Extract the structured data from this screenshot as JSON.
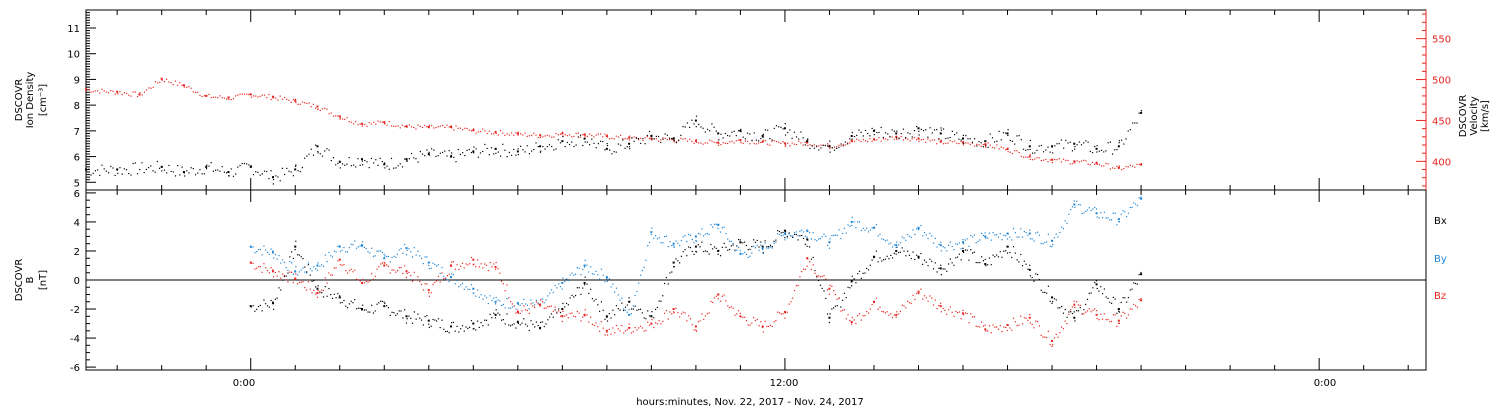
{
  "footer_label": "hours:minutes, Nov. 22, 2017 - Nov. 24, 2017",
  "x_tick_labels": [
    "0:00",
    "12:00",
    "0:00"
  ],
  "colors": {
    "black": "#000000",
    "red": "#e8251f",
    "blue": "#1f86d6"
  },
  "chart_data": [
    {
      "type": "scatter",
      "title": "",
      "xlabel": "hours:minutes, Nov. 22, 2017 - Nov. 24, 2017",
      "x_units": "hours since Nov. 22, 2017 0:00",
      "xlim": [
        -3.7,
        26.4
      ],
      "ylabel_left": [
        "DSCOVR",
        "Ion Density",
        "[cm⁻³]"
      ],
      "ylabel_right": [
        "DSCOVR",
        "Velocity",
        "[km/s]"
      ],
      "ylim_left": [
        4.7,
        11.7
      ],
      "ylim_right": [
        365,
        585
      ],
      "left_ticks": [
        "5",
        "6",
        "7",
        "8",
        "9",
        "10",
        "11"
      ],
      "right_ticks": [
        "400",
        "450",
        "500",
        "550"
      ],
      "grid": false,
      "series": [
        {
          "name": "Ion Density",
          "axis": "left",
          "color": "#000000",
          "x": [
            -3.7,
            -3.0,
            -2.0,
            -1.5,
            -1.0,
            -0.5,
            0.0,
            0.5,
            1.0,
            1.5,
            2.0,
            2.5,
            3.0,
            3.5,
            4.0,
            4.5,
            5.0,
            5.5,
            6.0,
            6.5,
            7.0,
            7.5,
            8.0,
            8.5,
            9.0,
            9.5,
            10.0,
            10.5,
            11.0,
            11.5,
            12.0,
            12.5,
            13.0,
            13.5,
            14.0,
            14.5,
            15.0,
            15.5,
            16.0,
            16.5,
            17.0,
            17.5,
            18.0,
            18.5,
            19.0,
            19.5,
            20.0
          ],
          "y": [
            5.5,
            5.5,
            5.6,
            5.4,
            5.6,
            5.4,
            5.6,
            5.2,
            5.5,
            6.4,
            5.8,
            5.9,
            5.7,
            5.9,
            6.1,
            6.0,
            6.2,
            6.3,
            6.2,
            6.4,
            6.6,
            6.7,
            6.3,
            6.5,
            6.8,
            6.7,
            7.4,
            6.9,
            7.0,
            6.8,
            7.1,
            6.6,
            6.4,
            6.8,
            7.0,
            6.9,
            7.1,
            6.9,
            6.7,
            6.6,
            6.9,
            6.4,
            6.4,
            6.5,
            6.3,
            6.4,
            7.7
          ]
        },
        {
          "name": "Velocity",
          "axis": "right",
          "color": "#e8251f",
          "x": [
            -3.7,
            -3.0,
            -2.5,
            -2.0,
            -1.5,
            -1.0,
            -0.5,
            0.0,
            0.5,
            1.0,
            1.5,
            2.0,
            2.5,
            3.0,
            3.5,
            4.0,
            4.5,
            5.0,
            5.5,
            6.0,
            6.5,
            7.0,
            7.5,
            8.0,
            8.5,
            9.0,
            9.5,
            10.0,
            10.5,
            11.0,
            11.5,
            12.0,
            12.5,
            13.0,
            13.5,
            14.0,
            14.5,
            15.0,
            15.5,
            16.0,
            16.5,
            17.0,
            17.5,
            18.0,
            18.5,
            19.0,
            19.5,
            20.0
          ],
          "y": [
            488,
            485,
            482,
            501,
            493,
            480,
            478,
            482,
            479,
            474,
            467,
            455,
            446,
            448,
            443,
            442,
            442,
            438,
            436,
            434,
            432,
            434,
            433,
            431,
            429,
            428,
            427,
            425,
            423,
            426,
            424,
            422,
            423,
            419,
            425,
            427,
            430,
            428,
            424,
            423,
            421,
            415,
            406,
            402,
            400,
            398,
            392,
            396
          ]
        }
      ]
    },
    {
      "type": "scatter",
      "title": "",
      "xlabel": "hours:minutes, Nov. 22, 2017 - Nov. 24, 2017",
      "x_units": "hours since Nov. 22, 2017 0:00",
      "xlim": [
        -3.7,
        26.4
      ],
      "ylabel_left": [
        "DSCOVR",
        "B",
        "[nT]"
      ],
      "ylim": [
        -6.2,
        6.2
      ],
      "left_ticks": [
        "-6",
        "-4",
        "-2",
        "0",
        "2",
        "4",
        "6"
      ],
      "zero_line": true,
      "grid": false,
      "legend": "right",
      "series": [
        {
          "name": "Bx",
          "color": "#000000",
          "x": [
            0.0,
            0.5,
            1.0,
            1.5,
            2.0,
            2.5,
            3.0,
            3.5,
            4.0,
            4.5,
            5.0,
            5.5,
            6.0,
            6.5,
            7.0,
            7.5,
            8.0,
            8.5,
            9.0,
            9.5,
            10.0,
            10.5,
            11.0,
            11.5,
            12.0,
            12.5,
            13.0,
            13.5,
            14.0,
            14.5,
            15.0,
            15.5,
            16.0,
            16.5,
            17.0,
            17.5,
            18.0,
            18.5,
            19.0,
            19.5,
            20.0
          ],
          "y": [
            -1.8,
            -1.6,
            2.3,
            -0.6,
            -1.2,
            -2.0,
            -1.8,
            -2.5,
            -2.8,
            -3.2,
            -3.0,
            -2.4,
            -2.9,
            -3.3,
            -2.0,
            -0.2,
            -2.5,
            -1.5,
            -2.5,
            1.2,
            2.3,
            2.0,
            2.6,
            2.3,
            3.4,
            2.8,
            -2.6,
            -0.1,
            1.6,
            2.0,
            1.6,
            0.8,
            2.0,
            1.1,
            2.3,
            0.7,
            -1.2,
            -2.6,
            -0.3,
            -2.0,
            0.4
          ]
        },
        {
          "name": "By",
          "color": "#1f86d6",
          "x": [
            0.0,
            0.5,
            1.0,
            1.5,
            2.0,
            2.5,
            3.0,
            3.5,
            4.0,
            4.5,
            5.0,
            5.5,
            6.0,
            6.5,
            7.0,
            7.5,
            8.0,
            8.5,
            9.0,
            9.5,
            10.0,
            10.5,
            11.0,
            11.5,
            12.0,
            12.5,
            13.0,
            13.5,
            14.0,
            14.5,
            15.0,
            15.5,
            16.0,
            16.5,
            17.0,
            17.5,
            18.0,
            18.5,
            19.0,
            19.5,
            20.0
          ],
          "y": [
            2.3,
            1.9,
            0.6,
            1.0,
            2.3,
            2.4,
            1.5,
            2.2,
            1.2,
            0.2,
            -0.6,
            -1.5,
            -1.6,
            -1.7,
            -0.2,
            1.0,
            0.2,
            -2.4,
            3.3,
            2.5,
            3.0,
            3.8,
            1.8,
            2.2,
            3.2,
            3.4,
            2.6,
            4.0,
            3.6,
            2.4,
            3.6,
            2.4,
            2.6,
            3.0,
            3.2,
            3.2,
            2.7,
            5.2,
            4.6,
            4.2,
            5.6
          ]
        },
        {
          "name": "Bz",
          "color": "#e8251f",
          "x": [
            0.0,
            0.5,
            1.0,
            1.5,
            2.0,
            2.5,
            3.0,
            3.5,
            4.0,
            4.5,
            5.0,
            5.5,
            6.0,
            6.5,
            7.0,
            7.5,
            8.0,
            8.5,
            9.0,
            9.5,
            10.0,
            10.5,
            11.0,
            11.5,
            12.0,
            12.5,
            13.0,
            13.5,
            14.0,
            14.5,
            15.0,
            15.5,
            16.0,
            16.5,
            17.0,
            17.5,
            18.0,
            18.5,
            19.0,
            19.5,
            20.0
          ],
          "y": [
            1.2,
            0.6,
            0.1,
            -0.9,
            1.4,
            -0.2,
            1.0,
            0.6,
            -0.7,
            1.0,
            1.4,
            0.9,
            -2.2,
            -1.7,
            -2.5,
            -2.4,
            -3.5,
            -3.3,
            -3.0,
            -2.0,
            -3.2,
            -1.0,
            -2.5,
            -3.2,
            -2.2,
            1.5,
            -0.6,
            -2.9,
            -1.5,
            -2.4,
            -0.8,
            -1.8,
            -2.3,
            -3.4,
            -3.1,
            -2.6,
            -4.2,
            -1.7,
            -2.4,
            -2.8,
            -1.4
          ]
        }
      ]
    }
  ]
}
